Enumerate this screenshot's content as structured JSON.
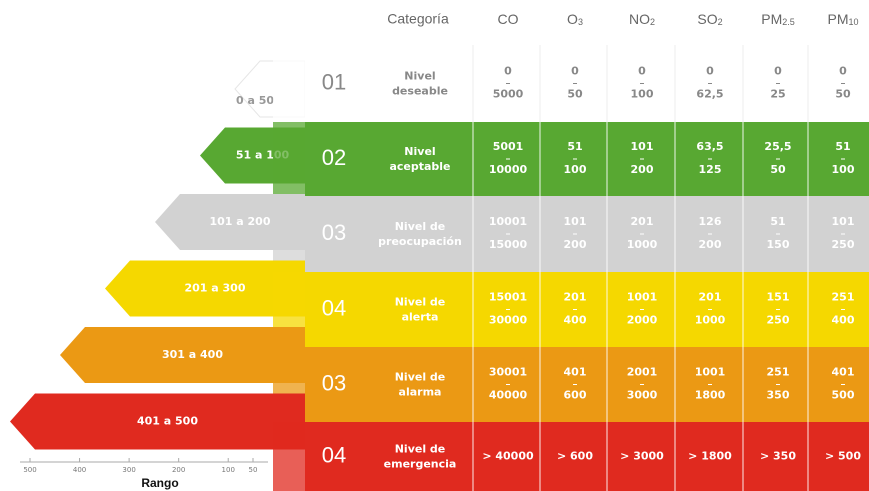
{
  "header": {
    "category": "Categoría",
    "columns": [
      {
        "main": "CO",
        "sub": ""
      },
      {
        "main": "O",
        "sub": "3"
      },
      {
        "main": "NO",
        "sub": "2"
      },
      {
        "main": "SO",
        "sub": "2"
      },
      {
        "main": "PM",
        "sub": "2.5"
      },
      {
        "main": "PM",
        "sub": "10"
      }
    ]
  },
  "rows": [
    {
      "number": "01",
      "level": [
        "Nivel",
        "deseable"
      ],
      "range": "0 a 50",
      "color": "#ffffff",
      "text_color": "#888888",
      "cells": [
        [
          "0",
          "5000"
        ],
        [
          "0",
          "50"
        ],
        [
          "0",
          "100"
        ],
        [
          "0",
          "62,5"
        ],
        [
          "0",
          "25"
        ],
        [
          "0",
          "50"
        ]
      ]
    },
    {
      "number": "02",
      "level": [
        "Nivel",
        "aceptable"
      ],
      "range": "51 a 100",
      "color": "#58a832",
      "text_color": "#ffffff",
      "cells": [
        [
          "5001",
          "10000"
        ],
        [
          "51",
          "100"
        ],
        [
          "101",
          "200"
        ],
        [
          "63,5",
          "125"
        ],
        [
          "25,5",
          "50"
        ],
        [
          "51",
          "100"
        ]
      ]
    },
    {
      "number": "03",
      "level": [
        "Nivel de",
        "preocupación"
      ],
      "range": "101 a 200",
      "color": "#d2d2d2",
      "text_color": "#ffffff",
      "cells": [
        [
          "10001",
          "15000"
        ],
        [
          "101",
          "200"
        ],
        [
          "201",
          "1000"
        ],
        [
          "126",
          "200"
        ],
        [
          "51",
          "150"
        ],
        [
          "101",
          "250"
        ]
      ]
    },
    {
      "number": "04",
      "level": [
        "Nivel de",
        "alerta"
      ],
      "range": "201 a 300",
      "color": "#f5d800",
      "text_color": "#ffffff",
      "cells": [
        [
          "15001",
          "30000"
        ],
        [
          "201",
          "400"
        ],
        [
          "1001",
          "2000"
        ],
        [
          "201",
          "1000"
        ],
        [
          "151",
          "250"
        ],
        [
          "251",
          "400"
        ]
      ]
    },
    {
      "number": "03",
      "level": [
        "Nivel de",
        "alarma"
      ],
      "range": "301 a 400",
      "color": "#eb9914",
      "text_color": "#ffffff",
      "cells": [
        [
          "30001",
          "40000"
        ],
        [
          "401",
          "600"
        ],
        [
          "2001",
          "3000"
        ],
        [
          "1001",
          "1800"
        ],
        [
          "251",
          "350"
        ],
        [
          "401",
          "500"
        ]
      ]
    },
    {
      "number": "04",
      "level": [
        "Nivel de",
        "emergencia"
      ],
      "range": "401 a 500",
      "color": "#e02a1f",
      "text_color": "#ffffff",
      "cells": [
        [
          "> 40000"
        ],
        [
          "> 600"
        ],
        [
          "> 3000"
        ],
        [
          "> 1800"
        ],
        [
          "> 350"
        ],
        [
          "> 500"
        ]
      ]
    }
  ],
  "axis": {
    "title": "Rango",
    "xlim": [
      500,
      50
    ],
    "xticks": [
      500,
      400,
      300,
      200,
      100,
      50
    ]
  }
}
